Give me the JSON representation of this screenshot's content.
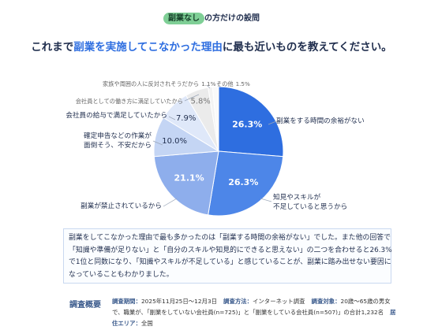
{
  "header": {
    "badge": "副業なし",
    "badge_suffix": "の方だけの設問"
  },
  "title": {
    "before": "これまで",
    "highlight": "副業を実施してこなかった理由",
    "after": "に最も近いものを教えてください。"
  },
  "chart_data": {
    "type": "pie",
    "categories": [
      "副業をする時間の余裕がない",
      "知見やスキルが\n不足していると思うから",
      "副業が禁止されているから",
      "確定申告などの作業が\n面倒そう、不安だから",
      "会社員の給与で満足していたから",
      "会社員としての働き方に満足していたから",
      "家族や周囲の人に反対されそうだから",
      "その他"
    ],
    "values": [
      26.3,
      26.3,
      21.1,
      10.0,
      7.9,
      5.8,
      1.1,
      1.5
    ],
    "value_labels": [
      "26.3%",
      "26.3%",
      "21.1%",
      "10.0%",
      "7.9%",
      "5.8%",
      "1.1%",
      "1.5%"
    ],
    "colors": [
      "#2e6ee0",
      "#4d86e8",
      "#8eaeec",
      "#c4d5f4",
      "#dfe8f9",
      "#ebebeb",
      "#f3f3f3",
      "#f9f9f9"
    ]
  },
  "description": [
    "副業をしてこなかった理由で最も多かったのは「副業する時間の余裕がない」でした。また他の回答で",
    "「知識や準備が足りない」と「自分のスキルや知見的にできると思えない」の二つを合わせると26.3%",
    "で1位と同数になり、「知識やスキルが不足している」と感じていることが、副業に踏み出せない要因に",
    "なっていることもわかりました。"
  ],
  "survey": {
    "title": "調査概要",
    "items": [
      {
        "label": "調査期間：",
        "value": "2025年11月25日〜12月3日"
      },
      {
        "label": "調査方法：",
        "value": "インターネット調査"
      },
      {
        "label": "調査対象：",
        "value": "20歳〜65歳の男女で、職業が、「副業をしていない会社員(n=725)」と「副業をしている会社員(n=507)」の合計1,232名"
      },
      {
        "label": "居住エリア：",
        "value": "全国"
      }
    ]
  }
}
